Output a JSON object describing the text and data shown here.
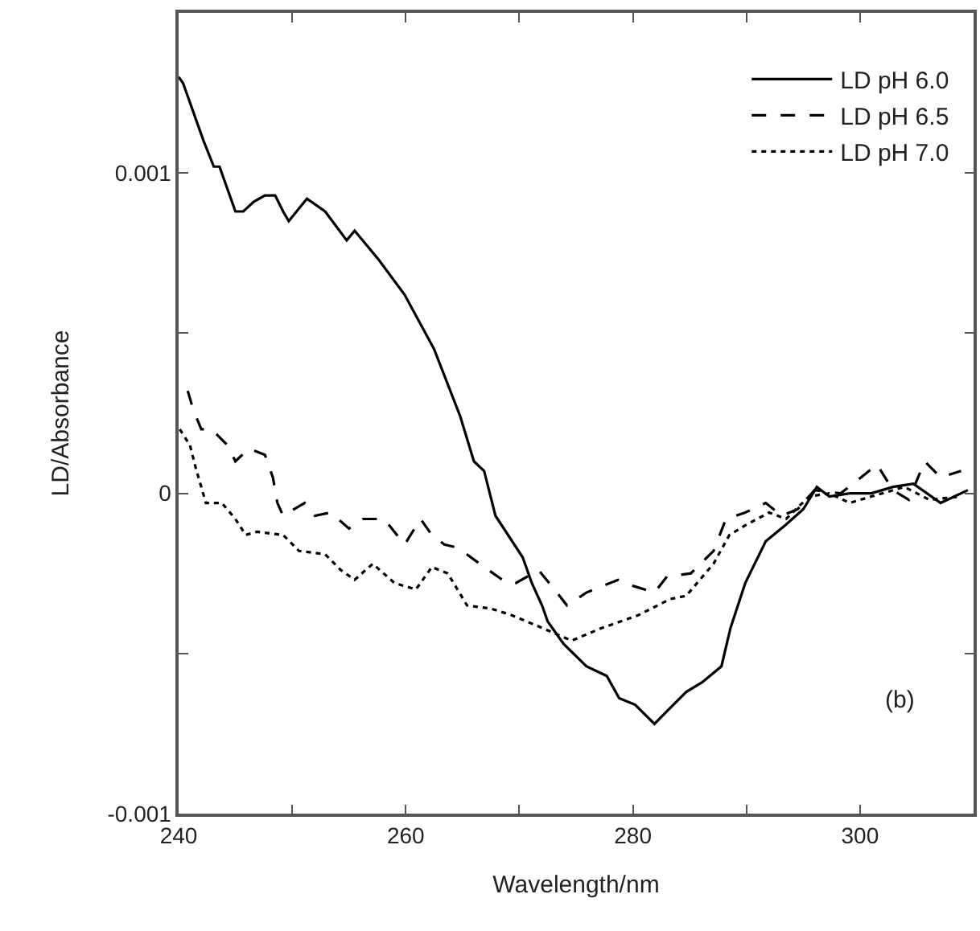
{
  "chart_data": {
    "type": "line",
    "xlabel": "Wavelength/nm",
    "ylabel": "LD/Absorbance",
    "xlim": [
      240,
      310
    ],
    "ylim": [
      -0.001,
      0.0015
    ],
    "xticks": [
      240,
      {
        "value": 250,
        "label": null
      },
      260,
      {
        "value": 270,
        "label": null
      },
      280,
      {
        "value": 290,
        "label": null
      },
      300
    ],
    "yticks": [
      -0.001,
      {
        "value": -0.0005,
        "label": null
      },
      0,
      {
        "value": 0.0005,
        "label": null
      },
      0.001
    ],
    "legend": "top right",
    "marker": "none",
    "annotations": [
      "(b)"
    ],
    "series": [
      {
        "name": "LD pH 6.0",
        "color": "#000000",
        "line_style": "solid",
        "x": [
          240,
          240.4,
          242.2,
          243.1,
          243.6,
          245,
          245.7,
          246.6,
          247.6,
          248.5,
          249.2,
          249.7,
          251.3,
          252.9,
          254.8,
          255.5,
          257.6,
          259.9,
          262.5,
          264.8,
          266,
          266.9,
          267.9,
          270.3,
          271.1,
          272,
          272.5,
          273.9,
          275.9,
          277.7,
          278.8,
          280.2,
          281.9,
          283,
          284.7,
          286.1,
          287.8,
          288.6,
          289.9,
          291.7,
          293.4,
          295,
          296.2,
          297.3,
          299.1,
          301,
          302.9,
          304.7,
          307.1,
          309.5
        ],
        "values": [
          0.0013,
          0.00128,
          0.0011,
          0.00102,
          0.00102,
          0.00088,
          0.00088,
          0.00091,
          0.00093,
          0.00093,
          0.00088,
          0.00085,
          0.00092,
          0.00088,
          0.00079,
          0.00082,
          0.00073,
          0.00062,
          0.00045,
          0.00024,
          0.0001,
          7e-05,
          -7e-05,
          -0.0002,
          -0.00028,
          -0.00035,
          -0.0004,
          -0.00047,
          -0.00054,
          -0.00057,
          -0.00064,
          -0.00066,
          -0.00072,
          -0.00068,
          -0.00062,
          -0.00059,
          -0.00054,
          -0.00042,
          -0.00028,
          -0.00015,
          -0.0001,
          -5e-05,
          2e-05,
          -1e-05,
          0,
          0,
          2e-05,
          3e-05,
          -3e-05,
          1e-05
        ]
      },
      {
        "name": "LD pH 6.5",
        "color": "#000000",
        "line_style": "dashed",
        "x": [
          240.8,
          241.3,
          242,
          242.9,
          244.3,
          245,
          246.2,
          247.6,
          248.3,
          248.7,
          249.2,
          251.1,
          252,
          253.4,
          255,
          256.2,
          258.1,
          259.9,
          261.3,
          262.3,
          263.4,
          264.6,
          266.9,
          268.9,
          269.7,
          271.7,
          273.1,
          274.2,
          275.9,
          278.7,
          280.1,
          281.9,
          283,
          285.1,
          287.1,
          288.2,
          289.9,
          291.7,
          293.1,
          294.5,
          296,
          298.3,
          300.1,
          301.5,
          302.9,
          304.3,
          305.7,
          307.1,
          308.9
        ],
        "values": [
          0.00032,
          0.00026,
          0.0002,
          0.0002,
          0.00015,
          0.0001,
          0.00014,
          0.00012,
          5e-05,
          -3e-05,
          -7e-05,
          -3e-05,
          -7e-05,
          -6e-05,
          -0.00011,
          -8e-05,
          -8e-05,
          -0.00016,
          -8e-05,
          -0.00013,
          -0.00016,
          -0.00017,
          -0.00023,
          -0.00028,
          -0.00028,
          -0.00024,
          -0.0003,
          -0.00035,
          -0.00031,
          -0.00027,
          -0.00029,
          -0.00031,
          -0.00026,
          -0.00025,
          -0.00018,
          -8e-05,
          -6e-05,
          -3e-05,
          -7e-05,
          -5e-05,
          1e-05,
          0,
          5e-05,
          9e-05,
          1e-05,
          -2e-05,
          0.0001,
          5e-05,
          7e-05
        ]
      },
      {
        "name": "LD pH 7.0",
        "color": "#000000",
        "line_style": "dotted",
        "x": [
          240.1,
          241,
          241.5,
          242.4,
          243.8,
          245,
          245.9,
          246.9,
          249.2,
          250.6,
          252.9,
          254.3,
          255.5,
          257.1,
          259,
          260.9,
          262.3,
          263.7,
          265.4,
          267.5,
          269.3,
          272,
          274.6,
          277.3,
          280.5,
          283.3,
          284.7,
          287.1,
          288.5,
          289.9,
          292,
          293.5,
          295.5,
          297.3,
          299.1,
          301,
          303.9,
          306.1,
          308.9
        ],
        "values": [
          0.0002,
          0.00015,
          8e-05,
          -3e-05,
          -3e-05,
          -8e-05,
          -0.00013,
          -0.00012,
          -0.00013,
          -0.00018,
          -0.00019,
          -0.00024,
          -0.00027,
          -0.00022,
          -0.00028,
          -0.0003,
          -0.00023,
          -0.00025,
          -0.00035,
          -0.00036,
          -0.00038,
          -0.00042,
          -0.00046,
          -0.00042,
          -0.00038,
          -0.00033,
          -0.00032,
          -0.00022,
          -0.00013,
          -0.0001,
          -6e-05,
          -8e-05,
          -1e-05,
          0,
          -3e-05,
          -1e-05,
          2e-05,
          -2e-05,
          -1e-05
        ]
      }
    ]
  }
}
